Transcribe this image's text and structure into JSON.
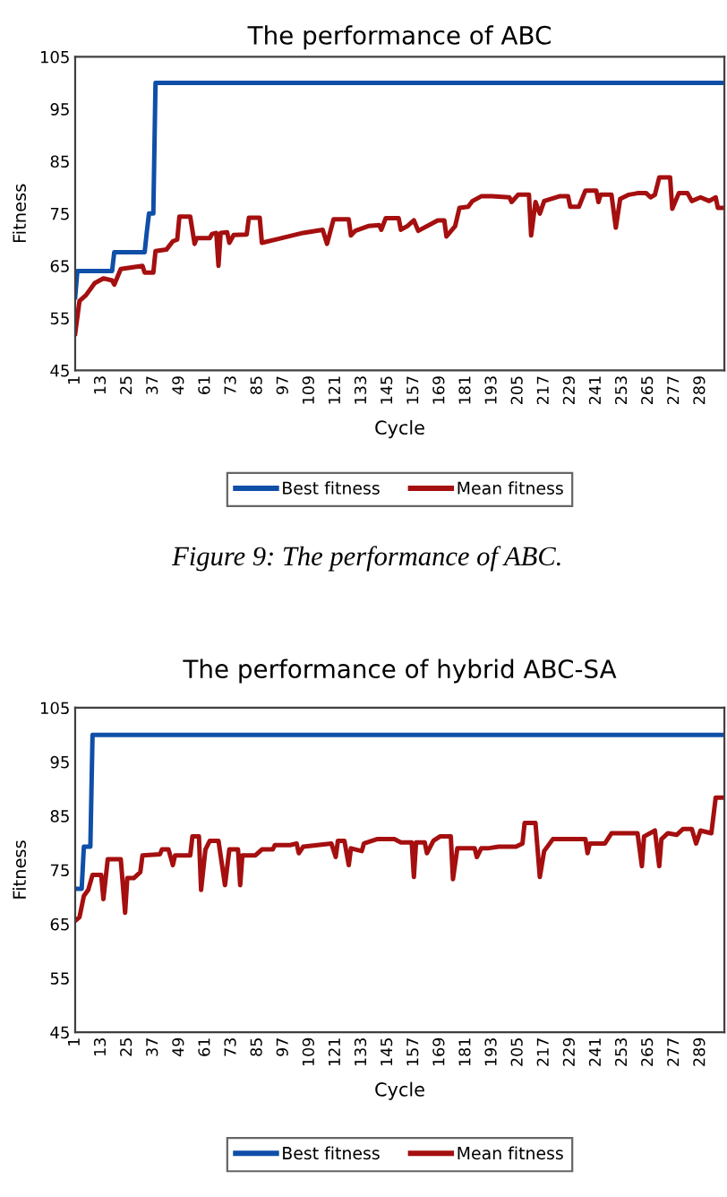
{
  "chart_data": [
    {
      "type": "line",
      "title": "The performance of ABC",
      "xlabel": "Cycle",
      "ylabel": "Fitness",
      "xlim": [
        1,
        300
      ],
      "xticks": [
        1,
        13,
        25,
        37,
        49,
        61,
        73,
        85,
        97,
        109,
        121,
        133,
        145,
        157,
        169,
        181,
        193,
        205,
        217,
        229,
        241,
        253,
        265,
        277,
        289
      ],
      "ylim": [
        45,
        105
      ],
      "yticks": [
        45,
        55,
        65,
        75,
        85,
        95,
        105
      ],
      "grid": false,
      "legend": "bottom",
      "marker": "none",
      "line_style": "solid",
      "annotations": [
        "Figure 9: The performance of ABC."
      ],
      "series": [
        {
          "name": "Best fitness",
          "color": "#0f4fa8",
          "x": [
            1,
            2,
            18,
            19,
            33,
            34,
            35,
            37,
            38,
            300
          ],
          "values": [
            59,
            64,
            64,
            67.6,
            67.6,
            71.5,
            75,
            75,
            100,
            100
          ]
        },
        {
          "name": "Mean fitness",
          "color": "#a50f0f",
          "x": [
            1,
            3,
            6,
            10,
            14,
            18,
            19,
            22,
            32,
            33,
            37,
            38,
            43,
            46,
            48,
            49,
            54,
            56,
            57,
            63,
            64,
            66,
            67,
            68,
            71,
            72,
            74,
            80,
            81,
            86,
            87,
            95,
            106,
            115,
            117,
            120,
            127,
            128,
            130,
            136,
            141,
            142,
            144,
            150,
            151,
            154,
            157,
            159,
            168,
            171,
            172,
            176,
            178,
            182,
            184,
            188,
            193,
            201,
            202,
            205,
            210,
            211,
            213,
            215,
            217,
            224,
            228,
            229,
            233,
            236,
            241,
            242,
            243,
            248,
            250,
            252,
            256,
            260,
            264,
            266,
            268,
            270,
            275,
            276,
            279,
            283,
            285,
            289,
            293,
            296,
            297,
            300
          ],
          "values": [
            52,
            58.3,
            59.4,
            61.7,
            62.6,
            62.2,
            61.4,
            64.4,
            65,
            63.7,
            63.7,
            67.8,
            68.1,
            69.7,
            70,
            74.4,
            74.4,
            69.2,
            70.3,
            70.3,
            71.1,
            71.3,
            65,
            71.3,
            71.4,
            69.4,
            70.9,
            71,
            74.2,
            74.2,
            69.4,
            70.2,
            71.3,
            71.9,
            69.2,
            73.9,
            73.9,
            70.8,
            71.7,
            72.6,
            72.8,
            71.9,
            74.1,
            74.1,
            71.9,
            72.6,
            73.7,
            71.7,
            73.7,
            73.7,
            70.6,
            72.6,
            76.1,
            76.3,
            77.4,
            78.3,
            78.3,
            78.1,
            77.2,
            78.6,
            78.6,
            70.8,
            77.2,
            75,
            77.4,
            78.3,
            78.3,
            76.3,
            76.3,
            79.4,
            79.4,
            77.2,
            78.6,
            78.6,
            72.3,
            77.8,
            78.6,
            78.9,
            78.9,
            78.1,
            78.6,
            81.9,
            81.9,
            75.9,
            78.9,
            78.9,
            77.4,
            78.1,
            77.4,
            78.1,
            76.1,
            76.1
          ]
        }
      ]
    },
    {
      "type": "line",
      "title": "The performance of hybrid ABC-SA",
      "xlabel": "Cycle",
      "ylabel": "Fitness",
      "xlim": [
        1,
        300
      ],
      "xticks": [
        1,
        13,
        25,
        37,
        49,
        61,
        73,
        85,
        97,
        109,
        121,
        133,
        145,
        157,
        169,
        181,
        193,
        205,
        217,
        229,
        241,
        253,
        265,
        277,
        289
      ],
      "ylim": [
        45,
        105
      ],
      "yticks": [
        45,
        55,
        65,
        75,
        85,
        95,
        105
      ],
      "grid": false,
      "legend": "bottom",
      "marker": "none",
      "line_style": "solid",
      "series": [
        {
          "name": "Best fitness",
          "color": "#0f4fa8",
          "x": [
            1,
            4,
            5,
            8,
            9,
            300
          ],
          "values": [
            71.5,
            71.5,
            79.3,
            79.3,
            100,
            100
          ]
        },
        {
          "name": "Mean fitness",
          "color": "#a50f0f",
          "x": [
            1,
            3,
            5,
            7,
            9,
            13,
            14,
            16,
            22,
            24,
            25,
            28,
            31,
            32,
            40,
            41,
            44,
            46,
            47,
            54,
            55,
            58,
            59,
            61,
            63,
            67,
            70,
            72,
            76,
            77,
            78,
            84,
            87,
            92,
            93,
            100,
            103,
            104,
            106,
            119,
            121,
            122,
            125,
            127,
            128,
            133,
            134,
            140,
            148,
            151,
            156,
            157,
            158,
            162,
            163,
            166,
            169,
            174,
            175,
            177,
            185,
            186,
            188,
            191,
            196,
            204,
            207,
            208,
            213,
            215,
            217,
            221,
            236,
            237,
            238,
            245,
            248,
            260,
            262,
            263,
            268,
            270,
            271,
            274,
            278,
            281,
            285,
            287,
            289,
            294,
            296,
            299
          ],
          "values": [
            65.6,
            66.3,
            70.2,
            71.3,
            74.1,
            74.1,
            69.6,
            77,
            77,
            67.1,
            73.5,
            73.5,
            74.6,
            77.7,
            77.9,
            78.8,
            78.8,
            75.9,
            77.7,
            77.7,
            81.2,
            81.2,
            71.3,
            78.8,
            80.4,
            80.4,
            72.2,
            78.8,
            78.8,
            72.2,
            77.7,
            77.7,
            78.8,
            78.8,
            79.6,
            79.6,
            79.9,
            78.1,
            79.3,
            79.9,
            77.4,
            80.4,
            80.4,
            75.9,
            79,
            78.5,
            79.9,
            80.7,
            80.7,
            80.1,
            80.1,
            73.7,
            80.1,
            80.1,
            78.1,
            80.4,
            81.2,
            81.2,
            73.3,
            79,
            79,
            77.4,
            79,
            79,
            79.3,
            79.3,
            79.9,
            83.7,
            83.7,
            73.7,
            78.5,
            80.7,
            80.7,
            78.1,
            79.9,
            79.9,
            81.8,
            81.8,
            75.7,
            81.2,
            82.3,
            75.7,
            80.7,
            81.8,
            81.5,
            82.6,
            82.6,
            79.9,
            82.3,
            81.8,
            88.4,
            88.4
          ]
        }
      ]
    }
  ]
}
